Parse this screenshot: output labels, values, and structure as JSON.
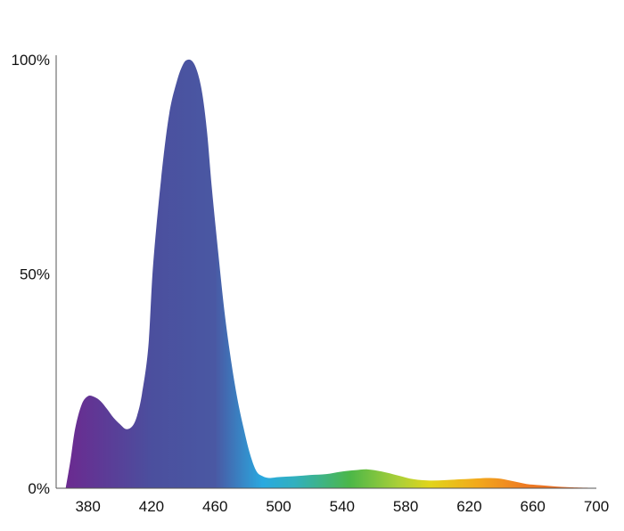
{
  "chart_data": {
    "type": "area",
    "title": "",
    "xlabel": "",
    "ylabel": "",
    "xlim": [
      360,
      700
    ],
    "ylim": [
      0,
      100
    ],
    "x_ticks": [
      380,
      420,
      460,
      500,
      540,
      580,
      620,
      660,
      700
    ],
    "x_tick_labels": [
      "380",
      "420",
      "460",
      "500",
      "540",
      "580",
      "620",
      "660",
      "700"
    ],
    "y_ticks": [
      0,
      50,
      100
    ],
    "y_tick_labels": [
      "0%",
      "50%",
      "100%"
    ],
    "grid": false,
    "legend": "none",
    "fill": "visible-spectrum gradient",
    "gradient_stops": [
      {
        "x": 366,
        "color": "#6b2a90"
      },
      {
        "x": 420,
        "color": "#4b4f9e"
      },
      {
        "x": 460,
        "color": "#4a58a3"
      },
      {
        "x": 490,
        "color": "#29a9e0"
      },
      {
        "x": 510,
        "color": "#31b0bf"
      },
      {
        "x": 545,
        "color": "#4cb748"
      },
      {
        "x": 575,
        "color": "#a9cf38"
      },
      {
        "x": 595,
        "color": "#e1d51a"
      },
      {
        "x": 625,
        "color": "#f2a91c"
      },
      {
        "x": 655,
        "color": "#ee7b22"
      },
      {
        "x": 700,
        "color": "#e45f24"
      }
    ],
    "series": [
      {
        "x": [
          366,
          369,
          372,
          376,
          380,
          384,
          388,
          392,
          396,
          400,
          404,
          408,
          411,
          414,
          418,
          421,
          426,
          431,
          436,
          440,
          443,
          446,
          449,
          452,
          455,
          458,
          462,
          466,
          470,
          474,
          478,
          482,
          486,
          490,
          494,
          500,
          510,
          520,
          530,
          540,
          548,
          556,
          565,
          575,
          585,
          595,
          605,
          615,
          625,
          633,
          640,
          648,
          656,
          665,
          675,
          685,
          695,
          700
        ],
        "y": [
          0,
          6.5,
          14,
          19.5,
          21.5,
          21.3,
          20.3,
          18.5,
          16.5,
          15,
          13.8,
          14.5,
          17,
          22,
          33,
          52,
          72,
          87,
          95,
          99,
          100,
          99.5,
          97,
          92,
          83,
          70,
          55,
          41,
          30,
          21,
          14,
          8,
          4,
          2.8,
          2.4,
          2.6,
          2.8,
          3.1,
          3.3,
          3.9,
          4.2,
          4.4,
          3.9,
          3,
          2.1,
          1.8,
          1.9,
          2.1,
          2.3,
          2.4,
          2.2,
          1.6,
          1,
          0.7,
          0.4,
          0.2,
          0.1,
          0
        ]
      }
    ]
  }
}
